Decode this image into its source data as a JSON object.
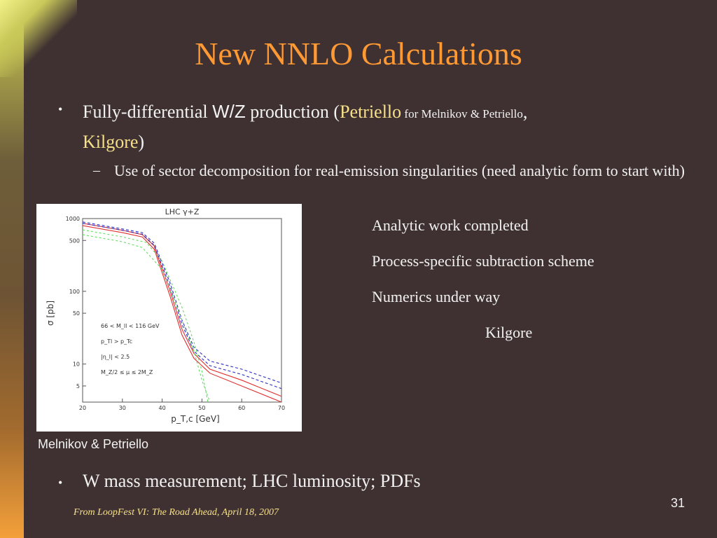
{
  "title": "New NNLO Calculations",
  "bullet1": {
    "part1": "Fully-differential ",
    "wz": "W/Z",
    "part2": " production (",
    "petriello": "Petriello",
    "for_text": " for Melnikov & Petriello",
    "comma": ",",
    "kilgore": "Kilgore",
    "close": ")"
  },
  "sub_bullet1": "Use of sector decomposition for real-emission singularities (need analytic form to start with)",
  "right_notes": [
    "Analytic work completed",
    "Process-specific subtraction scheme",
    "Numerics under way"
  ],
  "right_attribution": "Kilgore",
  "figure_caption": "Melnikov & Petriello",
  "bullet2": "W mass measurement; LHC luminosity; PDFs",
  "footer": "From LoopFest VI: The Road Ahead,  April 18, 2007",
  "page_number": "31",
  "colors": {
    "background": "#3f3131",
    "title": "#ff9933",
    "highlight": "#f6e08a",
    "text": "#f2f2f2"
  },
  "chart_data": {
    "type": "line",
    "title": "LHC γ+Z",
    "xlabel": "p_T,c [GeV]",
    "ylabel": "σ [pb]",
    "x_ticks": [
      20,
      30,
      40,
      50,
      60,
      70
    ],
    "y_ticks": [
      5,
      10,
      50,
      100,
      500,
      1000
    ],
    "y_scale": "log",
    "xlim": [
      20,
      70
    ],
    "ylim": [
      3,
      1000
    ],
    "legend": [
      "66 < M_ll < 116 GeV",
      "p_Tl > p_Tc",
      "|η_l| < 2.5",
      "M_Z/2 ≤ μ ≤ 2M_Z"
    ],
    "series": [
      {
        "color": "#e03030",
        "dash": "none",
        "points": [
          [
            20,
            860
          ],
          [
            30,
            690
          ],
          [
            35,
            600
          ],
          [
            38,
            420
          ],
          [
            42,
            100
          ],
          [
            45,
            30
          ],
          [
            48,
            14
          ],
          [
            52,
            8.5
          ],
          [
            60,
            6
          ],
          [
            70,
            3.6
          ]
        ]
      },
      {
        "color": "#e03030",
        "dash": "none",
        "points": [
          [
            20,
            800
          ],
          [
            30,
            640
          ],
          [
            35,
            560
          ],
          [
            38,
            380
          ],
          [
            42,
            85
          ],
          [
            45,
            25
          ],
          [
            48,
            12
          ],
          [
            52,
            7.5
          ],
          [
            60,
            5
          ],
          [
            70,
            3
          ]
        ]
      },
      {
        "color": "#3030c0",
        "dash": "4,3",
        "points": [
          [
            20,
            900
          ],
          [
            30,
            720
          ],
          [
            35,
            640
          ],
          [
            38,
            460
          ],
          [
            42,
            130
          ],
          [
            45,
            40
          ],
          [
            48,
            17
          ],
          [
            52,
            11
          ],
          [
            60,
            8.5
          ],
          [
            70,
            5.5
          ]
        ]
      },
      {
        "color": "#3030c0",
        "dash": "4,3",
        "points": [
          [
            20,
            860
          ],
          [
            30,
            690
          ],
          [
            35,
            610
          ],
          [
            38,
            430
          ],
          [
            42,
            115
          ],
          [
            45,
            35
          ],
          [
            48,
            15
          ],
          [
            52,
            9.5
          ],
          [
            60,
            7.2
          ],
          [
            70,
            4.6
          ]
        ]
      },
      {
        "color": "#60e060",
        "dash": "3,3",
        "points": [
          [
            20,
            600
          ],
          [
            30,
            480
          ],
          [
            35,
            400
          ],
          [
            40,
            200
          ],
          [
            45,
            40
          ],
          [
            48,
            15
          ],
          [
            50,
            6
          ],
          [
            52,
            3
          ]
        ]
      },
      {
        "color": "#60e060",
        "dash": "3,3",
        "points": [
          [
            20,
            700
          ],
          [
            30,
            560
          ],
          [
            36,
            470
          ],
          [
            40,
            260
          ],
          [
            45,
            60
          ],
          [
            48,
            20
          ],
          [
            50,
            8
          ],
          [
            51.5,
            3
          ]
        ]
      }
    ]
  }
}
